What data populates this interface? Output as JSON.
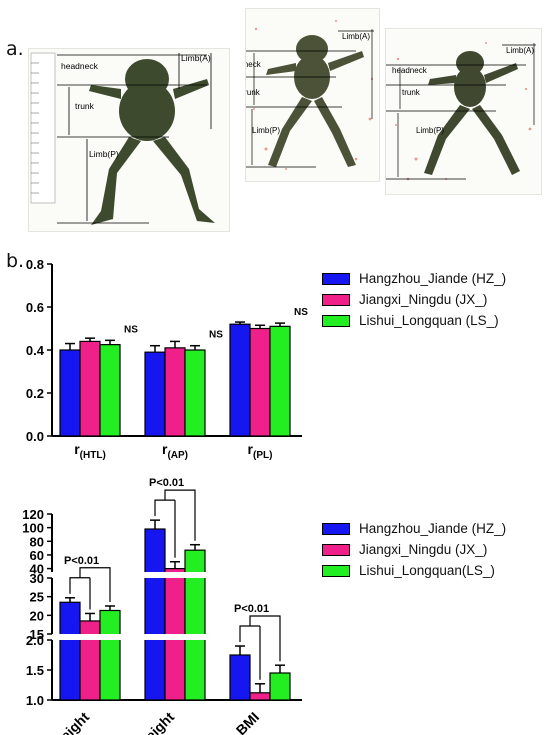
{
  "panel_labels": {
    "a": "a.",
    "b": "b."
  },
  "photos": [
    {
      "measure_labels": {
        "limb_a": "Limb(A)",
        "headneck": "headneck",
        "trunk": "trunk",
        "limb_p": "Limb(P)"
      }
    },
    {
      "measure_labels": {
        "limb_a": "Limb(A)",
        "headneck": "headneck",
        "trunk": "trunk",
        "limb_p": "Limb(P)"
      }
    },
    {
      "measure_labels": {
        "limb_a": "Limb(A)",
        "headneck": "headneck",
        "trunk": "trunk",
        "limb_p": "Limb(P)"
      }
    }
  ],
  "colors": {
    "HZ": "#1616f0",
    "JX": "#f0208a",
    "LS": "#22ee22"
  },
  "legend_top": [
    "Hangzhou_Jiande (HZ_)",
    "Jiangxi_Ningdu (JX_)",
    "Lishui_Longquan (LS_)"
  ],
  "legend_bottom": [
    "Hangzhou_Jiande (HZ_)",
    "Jiangxi_Ningdu (JX_)",
    "Lishui_Longquan(LS_)"
  ],
  "chart_data": [
    {
      "type": "bar",
      "categories": [
        {
          "main": "r",
          "sub": "(HTL)"
        },
        {
          "main": "r",
          "sub": "(AP)"
        },
        {
          "main": "r",
          "sub": "(PL)"
        }
      ],
      "series": [
        {
          "name": "Hangzhou_Jiande (HZ_)",
          "values": [
            0.4,
            0.39,
            0.52
          ],
          "errors": [
            0.03,
            0.03,
            0.01
          ]
        },
        {
          "name": "Jiangxi_Ningdu (JX_)",
          "values": [
            0.44,
            0.41,
            0.5
          ],
          "errors": [
            0.015,
            0.03,
            0.015
          ]
        },
        {
          "name": "Lishui_Longquan (LS_)",
          "values": [
            0.425,
            0.4,
            0.51
          ],
          "errors": [
            0.02,
            0.02,
            0.015
          ]
        }
      ],
      "annotations": [
        "NS",
        "NS",
        "NS"
      ],
      "ylim": [
        0,
        0.8
      ],
      "yticks": [
        "0.0",
        "0.2",
        "0.4",
        "0.6",
        "0.8"
      ]
    },
    {
      "type": "bar",
      "categories": [
        "height",
        "weight",
        "BMI"
      ],
      "series": [
        {
          "name": "Hangzhou_Jiande (HZ_)",
          "values": [
            23.5,
            98,
            1.75
          ],
          "errors": [
            1.2,
            13,
            0.15
          ]
        },
        {
          "name": "Jiangxi_Ningdu (JX_)",
          "values": [
            18.5,
            40,
            1.12
          ],
          "errors": [
            2.0,
            10,
            0.15
          ]
        },
        {
          "name": "Lishui_Longquan(LS_)",
          "values": [
            21.3,
            67,
            1.45
          ],
          "errors": [
            1.2,
            8,
            0.13
          ]
        }
      ],
      "annotations": [
        "P<0.01",
        "P<0.01",
        "P<0.01"
      ],
      "broken_axis": [
        {
          "range": [
            1.0,
            2.0
          ],
          "ticks": [
            "1.0",
            "1.5",
            "2.0"
          ]
        },
        {
          "range": [
            15,
            30
          ],
          "ticks": [
            "15",
            "20",
            "25",
            "30"
          ]
        },
        {
          "range": [
            35,
            120
          ],
          "ticks": [
            "40",
            "60",
            "80",
            "100",
            "120"
          ]
        }
      ]
    }
  ]
}
